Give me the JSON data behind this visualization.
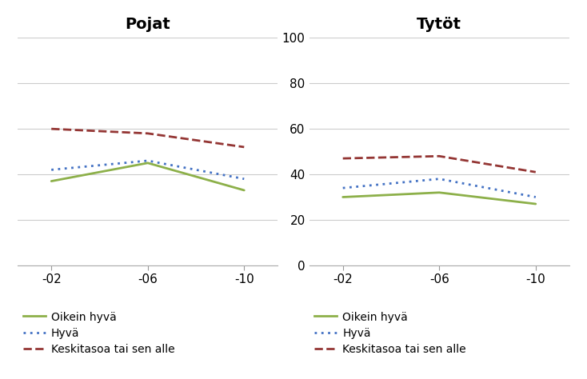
{
  "x_labels": [
    "-02",
    "-06",
    "-10"
  ],
  "x_values": [
    0,
    1,
    2
  ],
  "pojat": {
    "title": "Pojat",
    "oikein_hyva": [
      37,
      45,
      33
    ],
    "hyva": [
      42,
      46,
      38
    ],
    "keski": [
      60,
      58,
      52
    ]
  },
  "tytot": {
    "title": "Tytöt",
    "oikein_hyva": [
      30,
      32,
      27
    ],
    "hyva": [
      34,
      38,
      30
    ],
    "keski": [
      47,
      48,
      41
    ]
  },
  "ylim": [
    0,
    100
  ],
  "yticks": [
    0,
    20,
    40,
    60,
    80,
    100
  ],
  "legend": {
    "oikein_hyva": "Oikein hyvä",
    "hyva": "Hyvä",
    "keski": "Keskitasoa tai sen alle"
  },
  "colors": {
    "oikein_hyva": "#8db04a",
    "hyva": "#4472c4",
    "keski": "#943634"
  },
  "background": "#ffffff",
  "title_fontsize": 14,
  "legend_fontsize": 10,
  "tick_fontsize": 11
}
